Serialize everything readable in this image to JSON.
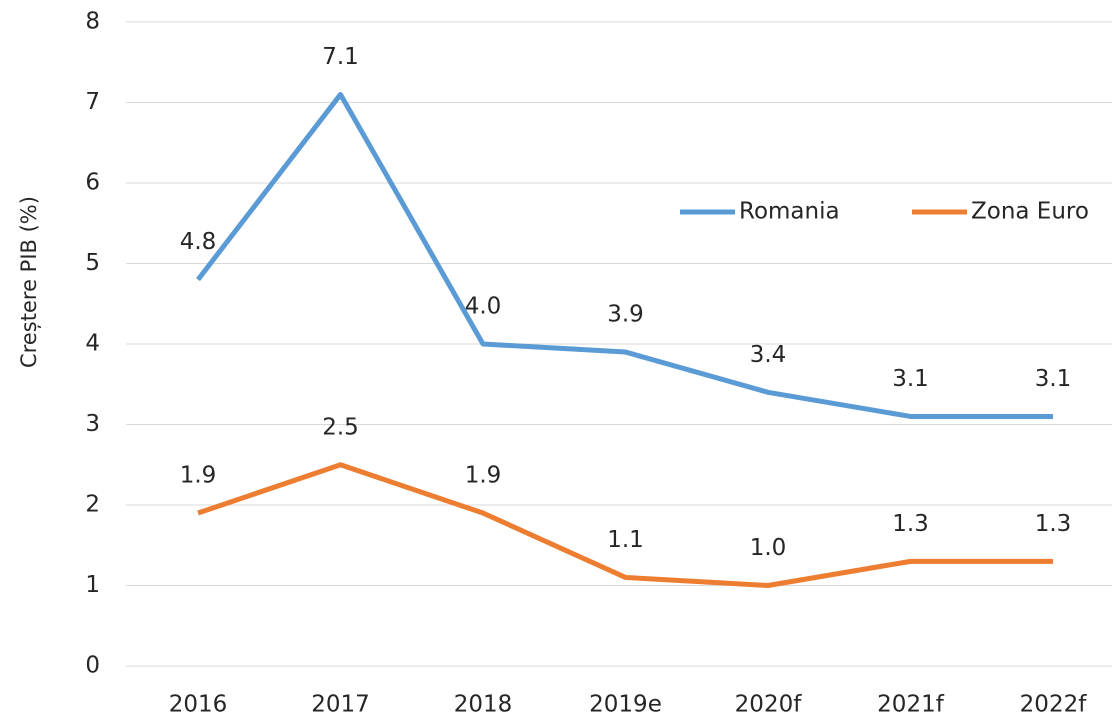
{
  "chart_data": {
    "type": "line",
    "y_label": "Creștere PIB (%)",
    "categories": [
      "2016",
      "2017",
      "2018",
      "2019e",
      "2020f",
      "2021f",
      "2022f"
    ],
    "series": [
      {
        "name": "Romania",
        "color": "#5b9bd5",
        "values": [
          4.8,
          7.1,
          4.0,
          3.9,
          3.4,
          3.1,
          3.1
        ],
        "value_labels": [
          "4.8",
          "7.1",
          "4.0",
          "3.9",
          "3.4",
          "3.1",
          "3.1"
        ]
      },
      {
        "name": "Zona Euro",
        "color": "#ed7d31",
        "values": [
          1.9,
          2.5,
          1.9,
          1.1,
          1.0,
          1.3,
          1.3
        ],
        "value_labels": [
          "1.9",
          "2.5",
          "1.9",
          "1.1",
          "1.0",
          "1.3",
          "1.3"
        ]
      }
    ],
    "ylim": [
      0,
      8
    ],
    "yticks": [
      0,
      1,
      2,
      3,
      4,
      5,
      6,
      7,
      8
    ],
    "grid": true,
    "legend": "upper right"
  }
}
